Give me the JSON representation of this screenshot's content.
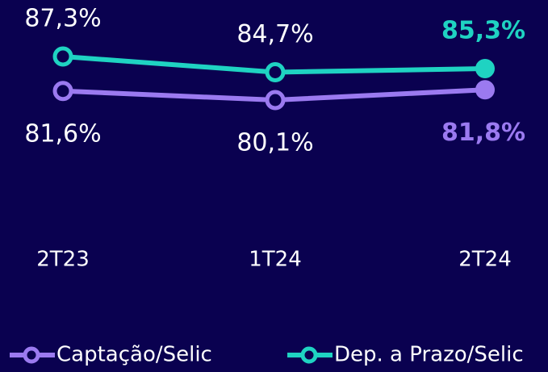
{
  "chart_data": {
    "type": "line",
    "categories": [
      "2T23",
      "1T24",
      "2T24"
    ],
    "series": [
      {
        "name": "Captação/Selic",
        "color": "#9b7af0",
        "values": [
          81.6,
          80.1,
          81.8
        ],
        "value_labels": [
          "81,6%",
          "80,1%",
          "81,8%"
        ]
      },
      {
        "name": "Dep. a Prazo/Selic",
        "color": "#1fd3c2",
        "values": [
          87.3,
          84.7,
          85.3
        ],
        "value_labels": [
          "87,3%",
          "84,7%",
          "85,3%"
        ]
      }
    ],
    "legend": "bottom"
  }
}
